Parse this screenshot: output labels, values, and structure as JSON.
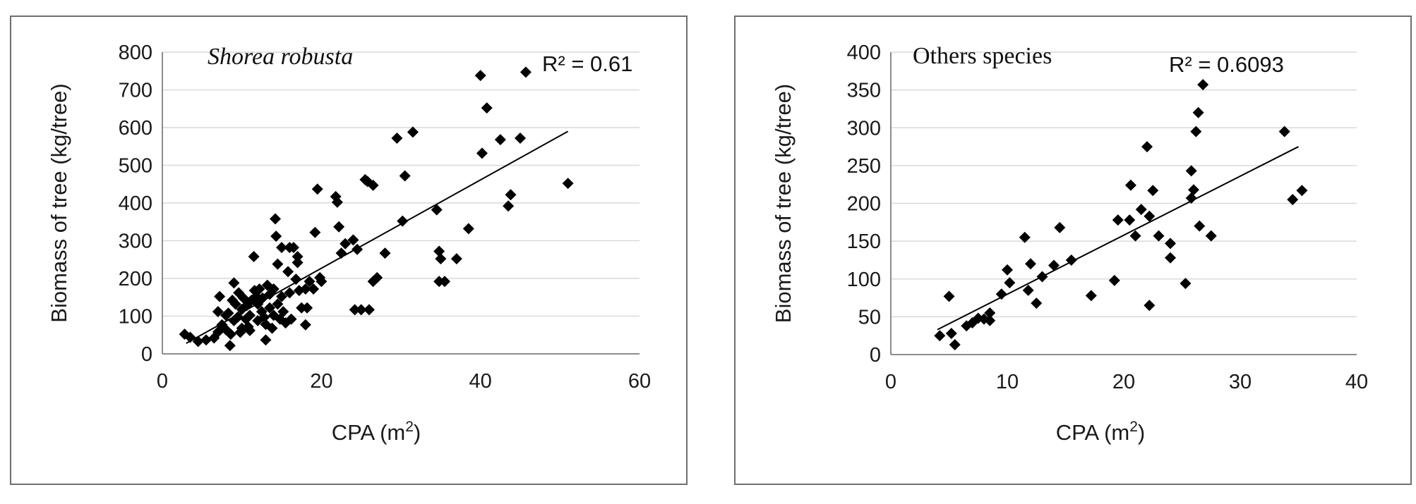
{
  "chart_data": [
    {
      "type": "scatter",
      "title": "Shorea robusta",
      "xlabel": "CPA (m",
      "xlabel_sup": "2",
      "xlabel_end": ")",
      "ylabel": "Biomass  of tree  (kg/tree)",
      "annotation": "R² = 0.61",
      "xlim": [
        0,
        60
      ],
      "ylim": [
        0,
        800
      ],
      "xticks": [
        "0",
        "20",
        "40",
        "60"
      ],
      "yticks": [
        "0",
        "100",
        "200",
        "300",
        "400",
        "500",
        "600",
        "700",
        "800"
      ],
      "grid": true,
      "marker": "diamond",
      "trendline": {
        "x": [
          3,
          51
        ],
        "y": [
          28,
          590
        ]
      },
      "points": [
        [
          2.8,
          52
        ],
        [
          3.5,
          44
        ],
        [
          4.5,
          33
        ],
        [
          5.5,
          37
        ],
        [
          6.5,
          42
        ],
        [
          7,
          58
        ],
        [
          7,
          112
        ],
        [
          7.2,
          152
        ],
        [
          7.5,
          77
        ],
        [
          8,
          102
        ],
        [
          8,
          64
        ],
        [
          8.3,
          108
        ],
        [
          8.5,
          22
        ],
        [
          8.6,
          52
        ],
        [
          8.8,
          142
        ],
        [
          9,
          188
        ],
        [
          9,
          88
        ],
        [
          9.2,
          132
        ],
        [
          9.5,
          98
        ],
        [
          9.6,
          162
        ],
        [
          9.8,
          57
        ],
        [
          10,
          118
        ],
        [
          10,
          68
        ],
        [
          10.2,
          148
        ],
        [
          10.5,
          92
        ],
        [
          10.6,
          128
        ],
        [
          10.8,
          72
        ],
        [
          11,
          62
        ],
        [
          11,
          102
        ],
        [
          11.2,
          142
        ],
        [
          11.5,
          258
        ],
        [
          11.6,
          168
        ],
        [
          11.8,
          152
        ],
        [
          12,
          88
        ],
        [
          12,
          132
        ],
        [
          12.2,
          172
        ],
        [
          12.5,
          112
        ],
        [
          12.6,
          148
        ],
        [
          12.8,
          97
        ],
        [
          13,
          37
        ],
        [
          13,
          78
        ],
        [
          13.2,
          182
        ],
        [
          13.5,
          122
        ],
        [
          13.5,
          158
        ],
        [
          13.8,
          68
        ],
        [
          14,
          102
        ],
        [
          14,
          172
        ],
        [
          14.2,
          358
        ],
        [
          14.3,
          312
        ],
        [
          14.5,
          238
        ],
        [
          14.5,
          132
        ],
        [
          14.8,
          92
        ],
        [
          15,
          282
        ],
        [
          15,
          152
        ],
        [
          15.2,
          112
        ],
        [
          15.5,
          82
        ],
        [
          15.8,
          218
        ],
        [
          16,
          282
        ],
        [
          16,
          162
        ],
        [
          16.2,
          92
        ],
        [
          16.5,
          282
        ],
        [
          16.8,
          198
        ],
        [
          17,
          258
        ],
        [
          17,
          242
        ],
        [
          17.2,
          168
        ],
        [
          17.5,
          122
        ],
        [
          18,
          172
        ],
        [
          18,
          77
        ],
        [
          18.2,
          122
        ],
        [
          18.5,
          192
        ],
        [
          19,
          172
        ],
        [
          19.2,
          322
        ],
        [
          19.5,
          437
        ],
        [
          19.8,
          202
        ],
        [
          20,
          192
        ],
        [
          21.8,
          417
        ],
        [
          22,
          402
        ],
        [
          22.2,
          337
        ],
        [
          22.5,
          267
        ],
        [
          23,
          292
        ],
        [
          24,
          302
        ],
        [
          24.5,
          277
        ],
        [
          24.2,
          117
        ],
        [
          25,
          117
        ],
        [
          25.5,
          462
        ],
        [
          25.8,
          457
        ],
        [
          26,
          117
        ],
        [
          26.5,
          447
        ],
        [
          26.5,
          192
        ],
        [
          27,
          202
        ],
        [
          28,
          267
        ],
        [
          29.5,
          572
        ],
        [
          30.2,
          352
        ],
        [
          30.5,
          472
        ],
        [
          31.5,
          588
        ],
        [
          34.5,
          382
        ],
        [
          34.8,
          272
        ],
        [
          35,
          252
        ],
        [
          34.8,
          192
        ],
        [
          35.5,
          192
        ],
        [
          37,
          252
        ],
        [
          38.5,
          332
        ],
        [
          40,
          738
        ],
        [
          40.2,
          532
        ],
        [
          40.8,
          652
        ],
        [
          42.5,
          568
        ],
        [
          43.5,
          392
        ],
        [
          43.8,
          422
        ],
        [
          45,
          572
        ],
        [
          45.7,
          747
        ],
        [
          51,
          452
        ]
      ]
    },
    {
      "type": "scatter",
      "title": "Others species",
      "xlabel": "CPA (m",
      "xlabel_sup": "2",
      "xlabel_end": ")",
      "ylabel": "Biomass  of tree (kg/tree)",
      "annotation": "R² = 0.6093",
      "xlim": [
        0,
        40
      ],
      "ylim": [
        0,
        400
      ],
      "xticks": [
        "0",
        "10",
        "20",
        "30",
        "40"
      ],
      "yticks": [
        "0",
        "50",
        "100",
        "150",
        "200",
        "250",
        "300",
        "350",
        "400"
      ],
      "grid": true,
      "marker": "diamond",
      "trendline": {
        "x": [
          4,
          35
        ],
        "y": [
          33,
          275
        ]
      },
      "points": [
        [
          4.2,
          25
        ],
        [
          5,
          77
        ],
        [
          5.2,
          28
        ],
        [
          5.5,
          13
        ],
        [
          6.5,
          38
        ],
        [
          7,
          42
        ],
        [
          7.5,
          48
        ],
        [
          8,
          47
        ],
        [
          8.5,
          45
        ],
        [
          8.5,
          55
        ],
        [
          9.5,
          80
        ],
        [
          10,
          112
        ],
        [
          10.2,
          95
        ],
        [
          11.5,
          155
        ],
        [
          11.8,
          85
        ],
        [
          12,
          120
        ],
        [
          12.5,
          68
        ],
        [
          13,
          103
        ],
        [
          14,
          118
        ],
        [
          14.5,
          168
        ],
        [
          15.5,
          125
        ],
        [
          17.2,
          78
        ],
        [
          19.2,
          98
        ],
        [
          19.5,
          178
        ],
        [
          20.5,
          178
        ],
        [
          20.6,
          224
        ],
        [
          21,
          157
        ],
        [
          21.5,
          192
        ],
        [
          22,
          275
        ],
        [
          22.2,
          183
        ],
        [
          22.2,
          65
        ],
        [
          22.5,
          217
        ],
        [
          23,
          157
        ],
        [
          24,
          147
        ],
        [
          24,
          128
        ],
        [
          25.3,
          94
        ],
        [
          25.8,
          243
        ],
        [
          25.8,
          207
        ],
        [
          26,
          218
        ],
        [
          26.2,
          295
        ],
        [
          26.4,
          320
        ],
        [
          26.5,
          170
        ],
        [
          26.8,
          357
        ],
        [
          27.5,
          157
        ],
        [
          33.8,
          295
        ],
        [
          34.5,
          205
        ],
        [
          35.3,
          217
        ]
      ]
    }
  ]
}
